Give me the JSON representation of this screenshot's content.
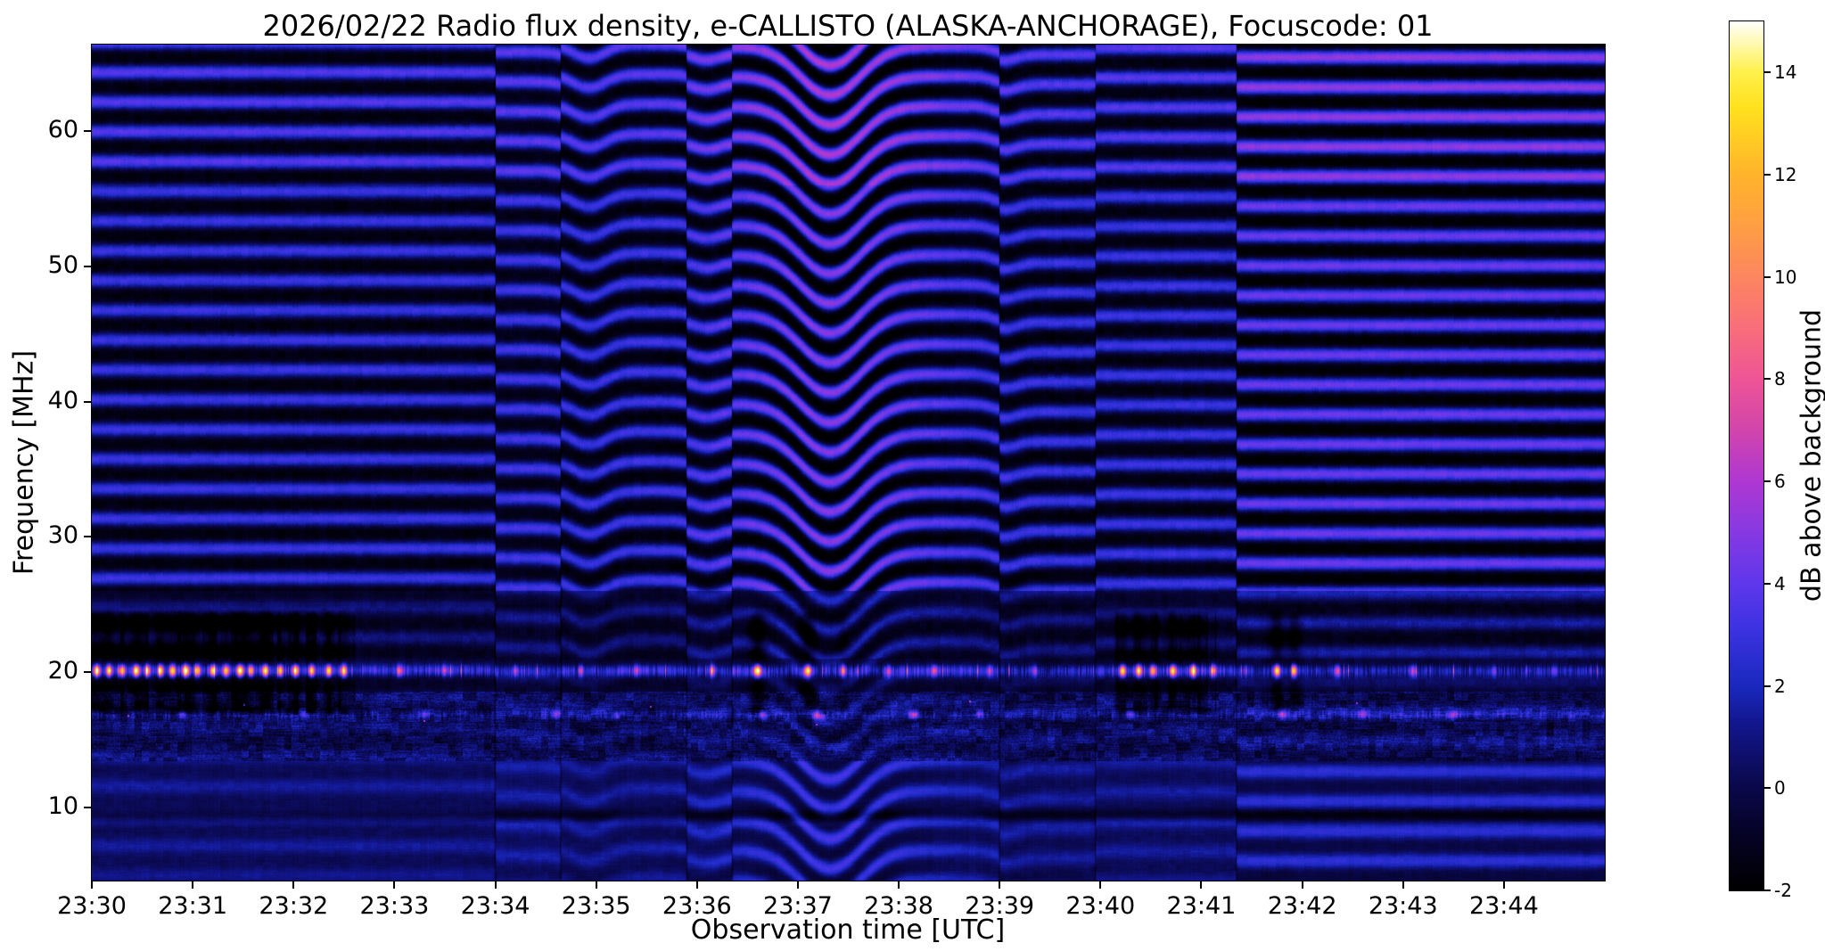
{
  "chart_data": {
    "type": "heatmap",
    "subtype": "radio-spectrogram",
    "title": "2026/02/22  Radio flux density, e-CALLISTO (ALASKA-ANCHORAGE), Focuscode: 01",
    "date": "2026/02/22",
    "instrument": "e-CALLISTO",
    "station": "ALASKA-ANCHORAGE",
    "focuscode": "01",
    "xlabel": "Observation time [UTC]",
    "ylabel": "Frequency [MHz]",
    "colorbar_label": "dB above background",
    "x_tick_labels": [
      "23:30",
      "23:31",
      "23:32",
      "23:33",
      "23:34",
      "23:35",
      "23:36",
      "23:37",
      "23:38",
      "23:39",
      "23:40",
      "23:41",
      "23:42",
      "23:43",
      "23:44"
    ],
    "x_start_utc": "23:30",
    "x_end_utc": "23:45",
    "x_span_minutes": 15,
    "y_ticks_mhz": [
      10,
      20,
      30,
      40,
      50,
      60
    ],
    "y_range_mhz": [
      4.6,
      66.4
    ],
    "value_range_db": [
      -2,
      15
    ],
    "colorbar_ticks_db": [
      -2,
      0,
      2,
      4,
      6,
      8,
      10,
      12,
      14
    ],
    "colormap_stops": [
      [
        0.0,
        "#000000"
      ],
      [
        0.06,
        "#050223"
      ],
      [
        0.118,
        "#0a084a"
      ],
      [
        0.19,
        "#12168c"
      ],
      [
        0.235,
        "#1a28be"
      ],
      [
        0.3,
        "#3c32e1"
      ],
      [
        0.353,
        "#5f37eb"
      ],
      [
        0.42,
        "#8c39e0"
      ],
      [
        0.471,
        "#af37d2"
      ],
      [
        0.53,
        "#d245ab"
      ],
      [
        0.588,
        "#ee5596"
      ],
      [
        0.65,
        "#f96f79"
      ],
      [
        0.706,
        "#fc865f"
      ],
      [
        0.78,
        "#ffa53c"
      ],
      [
        0.824,
        "#ffb42b"
      ],
      [
        0.9,
        "#ffe11e"
      ],
      [
        0.941,
        "#fff04c"
      ],
      [
        1.0,
        "#ffffff"
      ]
    ],
    "features": [
      "Persistent horizontal interference banding (~2.2 MHz spacing) from ~24 MHz up to ~66 MHz across the whole time span",
      "Strong narrowband RFI line at ~20 MHz with saturating white/yellow bursts 23:30-23:32.5, near 23:36.6-23:37.5, 23:40.2-23:41.1 and 23:41.7-23:42",
      "Black vertical dropout dashes between ~17 and ~24.5 MHz accompanying the strong 20 MHz bursts",
      "Wavy ionospheric-like downward distortion of the band pattern centered near 23:37.3, smaller wiggles near 23:34.9 and 23:39",
      "Broadband mottled noise patch between ~13.5 and ~18.5 MHz with sporadic magenta dots near 17 MHz",
      "Smooth dark-blue low-frequency region below ~13 MHz with a dark lane near 9.5 MHz; clearer striping after 23:41.3",
      "Blocky segment boundaries (band phase jumps) near 23:34, 23:34.7, 23:35.9, 23:36.4, 23:39, 23:40, 23:41.3"
    ],
    "render": {
      "band_period_mhz": 2.2,
      "band_amp_db": 4.6,
      "segments": [
        {
          "start_min": 0,
          "offset_mhz": 0,
          "shade_db": 0
        },
        {
          "start_min": 4.0,
          "offset_mhz": 0.7,
          "shade_db": 0.22
        },
        {
          "start_min": 4.65,
          "offset_mhz": 0.15,
          "shade_db": 0
        },
        {
          "start_min": 5.9,
          "offset_mhz": 0.8,
          "shade_db": 0.18
        },
        {
          "start_min": 6.35,
          "offset_mhz": 0.3,
          "shade_db": 0.12
        },
        {
          "start_min": 9.0,
          "offset_mhz": 0.9,
          "shade_db": 0
        },
        {
          "start_min": 9.95,
          "offset_mhz": 0.4,
          "shade_db": 0.05
        },
        {
          "start_min": 11.35,
          "offset_mhz": 1.1,
          "shade_db": 0.08
        }
      ],
      "dips": [
        {
          "center_min": 7.32,
          "sigma_min": 0.3,
          "amp_mhz": 3.6
        },
        {
          "center_min": 4.93,
          "sigma_min": 0.16,
          "amp_mhz": 1.0
        },
        {
          "center_min": 6.1,
          "sigma_min": 0.13,
          "amp_mhz": 0.5
        },
        {
          "center_min": 9.05,
          "sigma_min": 0.12,
          "amp_mhz": 0.45
        }
      ],
      "dip_band_visibility": {
        "center_min": 7.35,
        "sigma_min": 0.8
      },
      "right_section_start_min": 11.35,
      "rfi_line": {
        "freq_mhz": 20.1,
        "sigma_mhz": 0.3,
        "base_amp_db": 2.5
      },
      "rfi_line2": {
        "freq_mhz": 16.85,
        "sigma_mhz": 0.22,
        "base_amp_db": 0.8
      },
      "bursts": [
        [
          0.05,
          0.022,
          11
        ],
        [
          0.17,
          0.02,
          12
        ],
        [
          0.3,
          0.02,
          10
        ],
        [
          0.44,
          0.022,
          13
        ],
        [
          0.55,
          0.02,
          9
        ],
        [
          0.68,
          0.02,
          12
        ],
        [
          0.8,
          0.02,
          11
        ],
        [
          0.93,
          0.022,
          13
        ],
        [
          1.05,
          0.02,
          10
        ],
        [
          1.2,
          0.02,
          12
        ],
        [
          1.33,
          0.02,
          11
        ],
        [
          1.47,
          0.022,
          13
        ],
        [
          1.58,
          0.02,
          9
        ],
        [
          1.72,
          0.02,
          12
        ],
        [
          1.87,
          0.02,
          10
        ],
        [
          2.02,
          0.022,
          12
        ],
        [
          2.18,
          0.02,
          11
        ],
        [
          2.35,
          0.02,
          12
        ],
        [
          2.5,
          0.022,
          10
        ],
        [
          3.05,
          0.02,
          7
        ],
        [
          3.5,
          0.02,
          4
        ],
        [
          4.2,
          0.02,
          4
        ],
        [
          4.85,
          0.02,
          5
        ],
        [
          5.4,
          0.02,
          4
        ],
        [
          6.15,
          0.02,
          6
        ],
        [
          6.6,
          0.025,
          13
        ],
        [
          7.1,
          0.025,
          13
        ],
        [
          7.45,
          0.02,
          9
        ],
        [
          7.9,
          0.02,
          5
        ],
        [
          8.35,
          0.02,
          5
        ],
        [
          8.9,
          0.02,
          4
        ],
        [
          9.35,
          0.02,
          4
        ],
        [
          10.22,
          0.02,
          11
        ],
        [
          10.38,
          0.02,
          12
        ],
        [
          10.52,
          0.02,
          10
        ],
        [
          10.72,
          0.022,
          12
        ],
        [
          10.92,
          0.02,
          11
        ],
        [
          11.12,
          0.02,
          8
        ],
        [
          11.75,
          0.022,
          12
        ],
        [
          11.92,
          0.02,
          11
        ],
        [
          12.35,
          0.02,
          6
        ],
        [
          13.1,
          0.02,
          4
        ],
        [
          13.9,
          0.02,
          4
        ],
        [
          14.5,
          0.02,
          4
        ]
      ],
      "line2_bursts": [
        [
          0.9,
          0.03,
          4
        ],
        [
          2.1,
          0.03,
          3.5
        ],
        [
          3.3,
          0.03,
          3.5
        ],
        [
          4.6,
          0.03,
          4
        ],
        [
          5.2,
          0.03,
          3.5
        ],
        [
          6.65,
          0.03,
          5
        ],
        [
          7.2,
          0.03,
          4.5
        ],
        [
          8.15,
          0.035,
          6.5
        ],
        [
          8.8,
          0.03,
          3.5
        ],
        [
          10.3,
          0.03,
          4.5
        ],
        [
          11.8,
          0.03,
          4.5
        ],
        [
          12.6,
          0.03,
          3.5
        ],
        [
          13.5,
          0.03,
          3.5
        ]
      ],
      "dark_clusters": [
        [
          0.0,
          2.62
        ],
        [
          10.15,
          11.15
        ]
      ],
      "dark_band_mhz": [
        16.8,
        24.6
      ],
      "quiet_dark_line_mhz": 9.45,
      "noise_band_mhz": [
        13.4,
        18.6
      ],
      "base_levels_db": {
        "high": -0.3,
        "lane": -0.6,
        "noise": 0.1,
        "low": 0.55
      }
    }
  }
}
